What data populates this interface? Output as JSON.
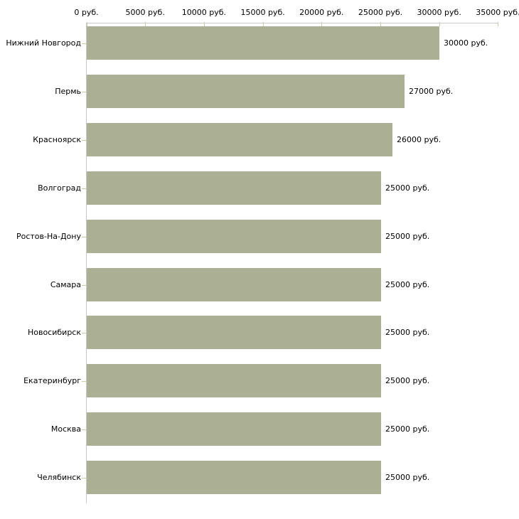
{
  "chart_data": {
    "type": "bar",
    "orientation": "horizontal",
    "title": "",
    "xlabel": "",
    "ylabel": "",
    "unit_suffix": " руб.",
    "categories": [
      "Нижний Новгород",
      "Пермь",
      "Красноярск",
      "Волгоград",
      "Ростов-На-Дону",
      "Самара",
      "Новосибирск",
      "Екатеринбург",
      "Москва",
      "Челябинск"
    ],
    "values": [
      30000,
      27000,
      26000,
      25000,
      25000,
      25000,
      25000,
      25000,
      25000,
      25000
    ],
    "value_labels": [
      "30000 руб.",
      "27000 руб.",
      "26000 руб.",
      "25000 руб.",
      "25000 руб.",
      "25000 руб.",
      "25000 руб.",
      "25000 руб.",
      "25000 руб.",
      "25000 руб."
    ],
    "x_ticks": [
      0,
      5000,
      10000,
      15000,
      20000,
      25000,
      30000,
      35000
    ],
    "x_tick_labels": [
      "0 руб.",
      "5000 руб.",
      "10000 руб.",
      "15000 руб.",
      "20000 руб.",
      "25000 руб.",
      "30000 руб.",
      "35000 руб."
    ],
    "xlim": [
      0,
      35000
    ],
    "grid": false,
    "legend": false,
    "colors": {
      "bar": "#abaf93",
      "axis": "#c9c9c9",
      "tick": "#c9cc9f",
      "text": "#000000",
      "background": "#ffffff"
    }
  }
}
